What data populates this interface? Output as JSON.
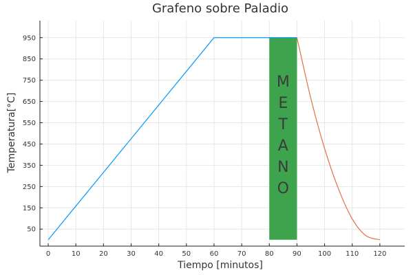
{
  "chart_data": {
    "type": "line",
    "title": "Grafeno sobre Paladio",
    "xlabel": "Tiempo [minutos]",
    "ylabel": "Temperatura[°C]",
    "xlim": [
      -3,
      129
    ],
    "ylim": [
      -30,
      1030
    ],
    "xticks": [
      0,
      10,
      20,
      30,
      40,
      50,
      60,
      70,
      80,
      90,
      100,
      110,
      120
    ],
    "yticks": [
      50,
      150,
      250,
      350,
      450,
      550,
      650,
      750,
      850,
      950
    ],
    "grid": true,
    "legend": "none",
    "series": [
      {
        "color": "#009af9",
        "x": [
          0,
          60,
          90
        ],
        "y": [
          0,
          950,
          950
        ]
      },
      {
        "color": "#e26f46",
        "x": [
          90,
          95,
          100,
          105,
          110,
          115,
          120
        ],
        "y": [
          950,
          666,
          429,
          240,
          98,
          19,
          0
        ]
      }
    ],
    "shaded_region": {
      "x": [
        80,
        90
      ],
      "y": [
        0,
        950
      ],
      "color": "#3da44d",
      "label": "METANO"
    }
  }
}
